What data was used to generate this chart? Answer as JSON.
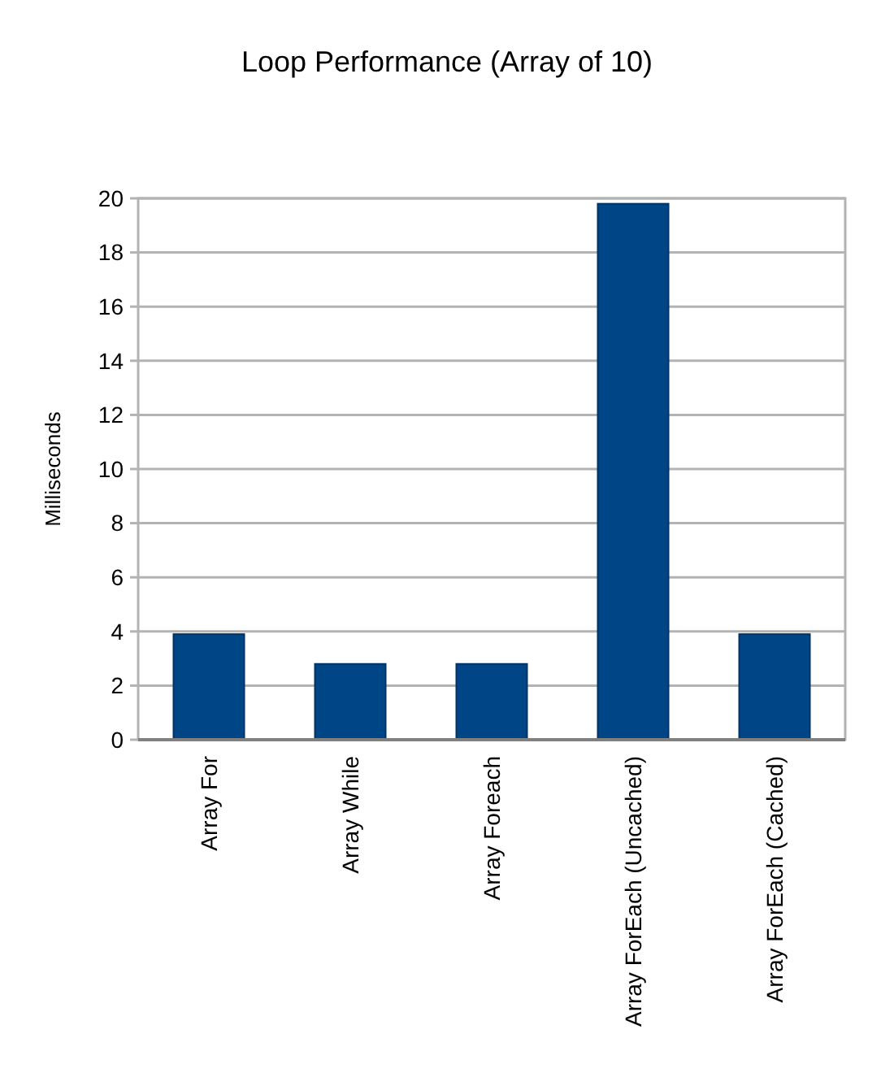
{
  "chart_data": {
    "type": "bar",
    "title": "Loop Performance (Array of 10)",
    "ylabel": "Milliseconds",
    "categories": [
      "Array For",
      "Array While",
      "Array Foreach",
      "Array ForEach (Uncached)",
      "Array ForEach (Cached)"
    ],
    "values": [
      3.9,
      2.8,
      2.8,
      19.8,
      3.9
    ],
    "color": "#004586",
    "ylim": [
      0,
      20
    ],
    "yticks": [
      0,
      2,
      4,
      6,
      8,
      10,
      12,
      14,
      16,
      18,
      20
    ],
    "grid": "y"
  }
}
